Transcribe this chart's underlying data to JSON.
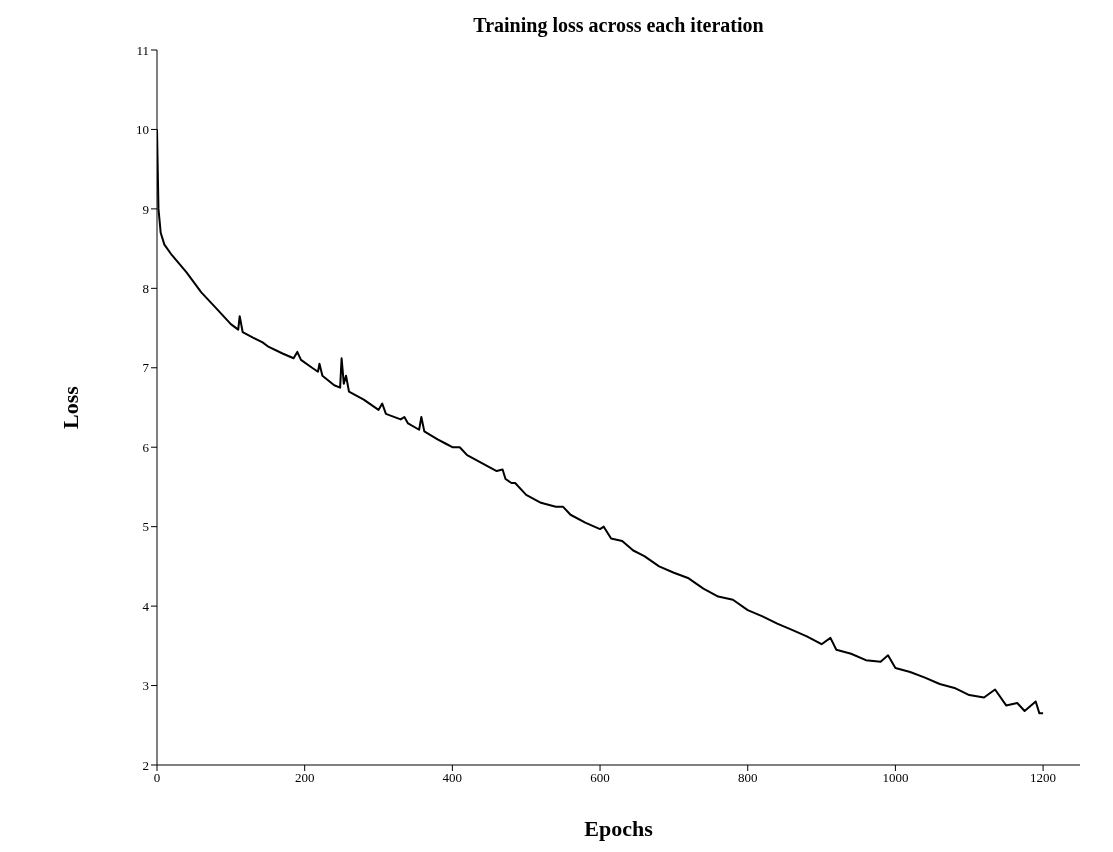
{
  "chart_data": {
    "type": "line",
    "title": "Training loss across each iteration",
    "xlabel": "Epochs",
    "ylabel": "Loss",
    "x": [
      0,
      2,
      5,
      10,
      20,
      40,
      60,
      80,
      100,
      110,
      112,
      116,
      130,
      143,
      150,
      170,
      185,
      190,
      195,
      210,
      218,
      220,
      224,
      240,
      248,
      250,
      253,
      256,
      260,
      280,
      300,
      305,
      310,
      330,
      335,
      340,
      355,
      358,
      362,
      380,
      390,
      400,
      410,
      420,
      440,
      460,
      468,
      472,
      480,
      485,
      500,
      520,
      540,
      550,
      560,
      580,
      600,
      605,
      615,
      630,
      645,
      660,
      680,
      700,
      720,
      740,
      760,
      780,
      800,
      820,
      840,
      860,
      880,
      900,
      912,
      920,
      940,
      960,
      980,
      990,
      1000,
      1020,
      1040,
      1060,
      1080,
      1100,
      1120,
      1135,
      1150,
      1165,
      1175,
      1190,
      1195,
      1200
    ],
    "series": [
      {
        "color": "#000000",
        "values": [
          10.0,
          9.0,
          8.7,
          8.55,
          8.42,
          8.2,
          7.95,
          7.75,
          7.55,
          7.48,
          7.65,
          7.45,
          7.38,
          7.32,
          7.27,
          7.18,
          7.12,
          7.2,
          7.1,
          7.0,
          6.95,
          7.05,
          6.9,
          6.78,
          6.75,
          7.12,
          6.8,
          6.9,
          6.7,
          6.6,
          6.47,
          6.55,
          6.42,
          6.35,
          6.38,
          6.3,
          6.22,
          6.38,
          6.2,
          6.1,
          6.05,
          6.0,
          6.0,
          5.9,
          5.8,
          5.7,
          5.72,
          5.6,
          5.55,
          5.55,
          5.4,
          5.3,
          5.25,
          5.25,
          5.15,
          5.05,
          4.97,
          5.0,
          4.85,
          4.82,
          4.7,
          4.63,
          4.5,
          4.42,
          4.35,
          4.22,
          4.12,
          4.08,
          3.95,
          3.87,
          3.78,
          3.7,
          3.62,
          3.52,
          3.6,
          3.45,
          3.4,
          3.32,
          3.3,
          3.38,
          3.22,
          3.17,
          3.1,
          3.02,
          2.97,
          2.88,
          2.85,
          2.95,
          2.75,
          2.78,
          2.68,
          2.8,
          2.65,
          2.65
        ]
      }
    ],
    "xlim": [
      0,
      1250
    ],
    "xticks": [
      0,
      200,
      400,
      600,
      800,
      1000,
      1200
    ],
    "ylim": [
      2,
      11
    ],
    "yticks": [
      2,
      3,
      4,
      5,
      6,
      7,
      8,
      9,
      10,
      11
    ],
    "grid": false,
    "legend": false,
    "marker": "none",
    "line_style": "solid"
  }
}
